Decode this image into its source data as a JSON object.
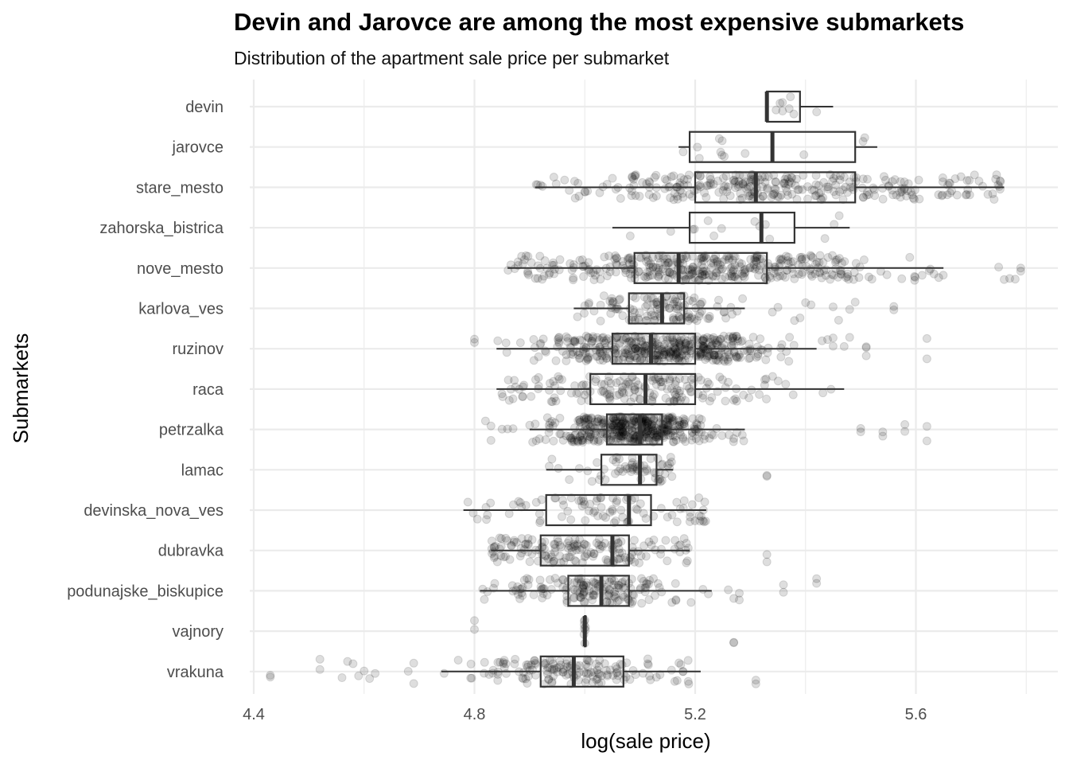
{
  "chart_data": {
    "type": "boxplot",
    "title": "Devin and Jarovce are among the most expensive submarkets",
    "subtitle": "Distribution of the apartment sale price per submarket",
    "xlabel": "log(sale price)",
    "ylabel": "Submarkets",
    "xlim": [
      4.39,
      5.84
    ],
    "x_ticks": [
      4.4,
      4.8,
      5.2,
      5.6
    ],
    "x_tick_labels": [
      "4.4",
      "4.8",
      "5.2",
      "5.6"
    ],
    "grid": true,
    "point_color": "#000000",
    "point_alpha": 0.13,
    "box_color": "#333333",
    "categories": [
      "devin",
      "jarovce",
      "stare_mesto",
      "zahorska_bistrica",
      "nove_mesto",
      "karlova_ves",
      "ruzinov",
      "raca",
      "petrzalka",
      "lamac",
      "devinska_nova_ves",
      "dubravka",
      "podunajske_biskupice",
      "vajnory",
      "vrakuna"
    ],
    "boxes": [
      {
        "category": "devin",
        "whisker_low": 5.33,
        "q1": 5.33,
        "median": 5.33,
        "q3": 5.39,
        "whisker_high": 5.45,
        "n_points": 8,
        "outliers": []
      },
      {
        "category": "jarovce",
        "whisker_low": 5.17,
        "q1": 5.19,
        "median": 5.34,
        "q3": 5.49,
        "whisker_high": 5.53,
        "n_points": 12,
        "outliers": []
      },
      {
        "category": "stare_mesto",
        "whisker_low": 4.91,
        "q1": 5.2,
        "median": 5.31,
        "q3": 5.49,
        "whisker_high": 5.76,
        "n_points": 300,
        "outliers": []
      },
      {
        "category": "zahorska_bistrica",
        "whisker_low": 5.05,
        "q1": 5.19,
        "median": 5.32,
        "q3": 5.38,
        "whisker_high": 5.48,
        "n_points": 14,
        "outliers": []
      },
      {
        "category": "nove_mesto",
        "whisker_low": 4.86,
        "q1": 5.09,
        "median": 5.17,
        "q3": 5.33,
        "whisker_high": 5.65,
        "n_points": 380,
        "outliers": [
          5.75,
          5.76,
          5.77,
          5.78,
          5.79,
          5.79
        ]
      },
      {
        "category": "karlova_ves",
        "whisker_low": 4.98,
        "q1": 5.08,
        "median": 5.14,
        "q3": 5.18,
        "whisker_high": 5.29,
        "n_points": 120,
        "outliers": [
          5.34,
          5.35,
          5.38,
          5.39,
          5.4,
          5.41,
          5.45,
          5.46,
          5.48,
          5.49,
          5.56,
          5.56
        ]
      },
      {
        "category": "ruzinov",
        "whisker_low": 4.84,
        "q1": 5.05,
        "median": 5.12,
        "q3": 5.2,
        "whisker_high": 5.42,
        "n_points": 420,
        "outliers": [
          4.8,
          4.8,
          5.43,
          5.44,
          5.45,
          5.45,
          5.47,
          5.48,
          5.51,
          5.51,
          5.51,
          5.62,
          5.62
        ]
      },
      {
        "category": "raca",
        "whisker_low": 4.84,
        "q1": 5.01,
        "median": 5.11,
        "q3": 5.2,
        "whisker_high": 5.47,
        "n_points": 170,
        "outliers": []
      },
      {
        "category": "petrzalka",
        "whisker_low": 4.9,
        "q1": 5.04,
        "median": 5.1,
        "q3": 5.14,
        "whisker_high": 5.29,
        "n_points": 420,
        "outliers": [
          4.82,
          4.83,
          4.83,
          4.85,
          4.86,
          4.87,
          5.5,
          5.5,
          5.54,
          5.54,
          5.58,
          5.58,
          5.62,
          5.62
        ]
      },
      {
        "category": "lamac",
        "whisker_low": 4.93,
        "q1": 5.03,
        "median": 5.1,
        "q3": 5.13,
        "whisker_high": 5.16,
        "n_points": 60,
        "outliers": [
          5.33,
          5.33
        ]
      },
      {
        "category": "devinska_nova_ves",
        "whisker_low": 4.78,
        "q1": 4.93,
        "median": 5.08,
        "q3": 5.12,
        "whisker_high": 5.22,
        "n_points": 90,
        "outliers": []
      },
      {
        "category": "dubravka",
        "whisker_low": 4.83,
        "q1": 4.92,
        "median": 5.05,
        "q3": 5.08,
        "whisker_high": 5.19,
        "n_points": 160,
        "outliers": [
          5.33,
          5.33
        ]
      },
      {
        "category": "podunajske_biskupice",
        "whisker_low": 4.81,
        "q1": 4.97,
        "median": 5.03,
        "q3": 5.08,
        "whisker_high": 5.23,
        "n_points": 160,
        "outliers": [
          5.26,
          5.27,
          5.28,
          5.28,
          5.36,
          5.36,
          5.42,
          5.42
        ]
      },
      {
        "category": "vajnory",
        "whisker_low": 5.0,
        "q1": 5.0,
        "median": 5.0,
        "q3": 5.0,
        "whisker_high": 5.0,
        "n_points": 8,
        "outliers": [
          4.8,
          4.8,
          5.27,
          5.27
        ]
      },
      {
        "category": "vrakuna",
        "whisker_low": 4.74,
        "q1": 4.92,
        "median": 4.98,
        "q3": 5.07,
        "whisker_high": 5.21,
        "n_points": 150,
        "outliers": [
          4.43,
          4.43,
          4.52,
          4.52,
          4.56,
          4.57,
          4.58,
          4.59,
          4.6,
          4.61,
          4.62,
          4.68,
          4.69,
          4.69,
          5.31,
          5.31
        ]
      }
    ]
  }
}
